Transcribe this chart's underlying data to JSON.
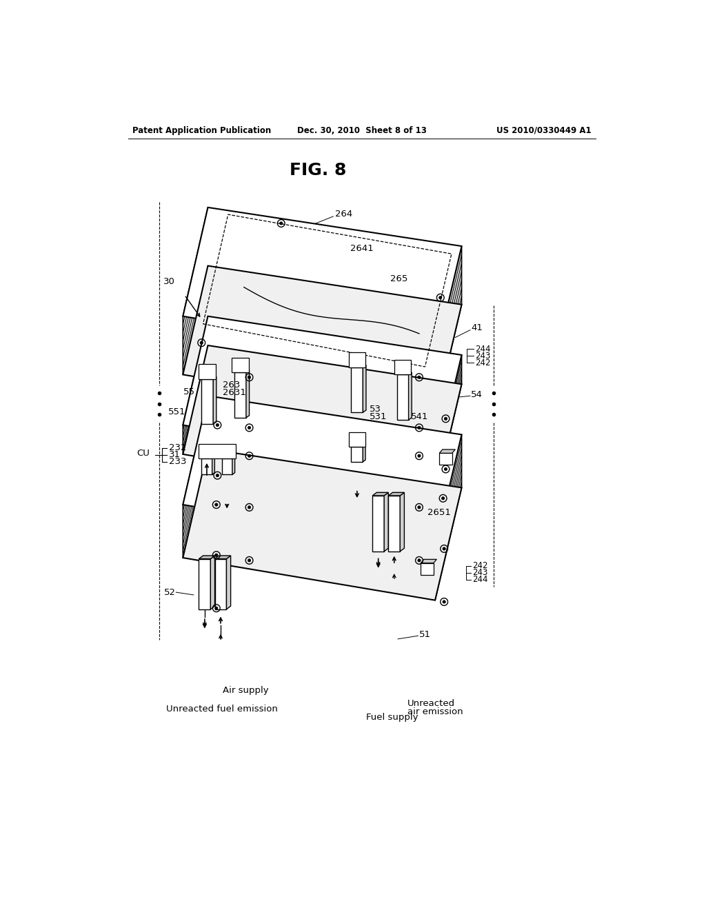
{
  "header_left": "Patent Application Publication",
  "header_center": "Dec. 30, 2010  Sheet 8 of 13",
  "header_right": "US 2010/0330449 A1",
  "title": "FIG. 8",
  "bg": "#ffffff"
}
